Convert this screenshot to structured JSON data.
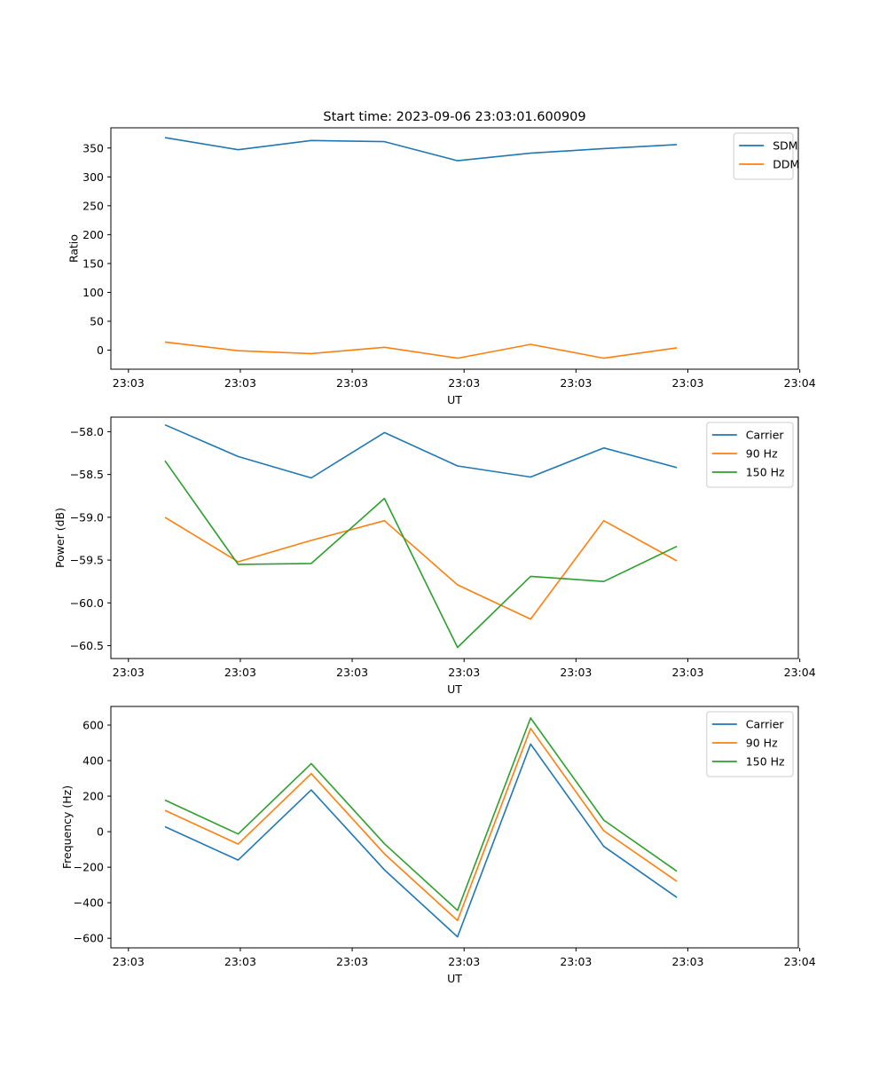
{
  "chart_data": [
    {
      "type": "line",
      "title": "Start time: 2023-09-06 23:03:01.600909",
      "xlabel": "UT",
      "ylabel": "Ratio",
      "x": [
        1,
        2,
        3,
        4,
        5,
        6,
        7,
        8
      ],
      "xlim": [
        0.26,
        9.66
      ],
      "x_ticks": [
        0.5,
        2.03,
        3.56,
        5.09,
        6.62,
        8.15,
        9.68
      ],
      "x_tick_labels": [
        "23:03",
        "23:03",
        "23:03",
        "23:03",
        "23:03",
        "23:03",
        "23:04"
      ],
      "ylim": [
        -33,
        385
      ],
      "y_ticks": [
        0,
        50,
        100,
        150,
        200,
        250,
        300,
        350
      ],
      "y_tick_labels": [
        "0",
        "50",
        "100",
        "150",
        "200",
        "250",
        "300",
        "350"
      ],
      "legend": "top-right",
      "grid": false,
      "series": [
        {
          "name": "SDM",
          "color": "#1f77b4",
          "values": [
            368,
            347,
            363,
            361,
            328,
            341,
            349,
            356
          ]
        },
        {
          "name": "DDM",
          "color": "#ff7f0e",
          "values": [
            14,
            -1,
            -6,
            5,
            -14,
            10,
            -14,
            4
          ]
        }
      ]
    },
    {
      "type": "line",
      "title": "",
      "xlabel": "UT",
      "ylabel": "Power (dB)",
      "x": [
        1,
        2,
        3,
        4,
        5,
        6,
        7,
        8
      ],
      "xlim": [
        0.26,
        9.66
      ],
      "x_ticks": [
        0.5,
        2.03,
        3.56,
        5.09,
        6.62,
        8.15,
        9.68
      ],
      "x_tick_labels": [
        "23:03",
        "23:03",
        "23:03",
        "23:03",
        "23:03",
        "23:03",
        "23:04"
      ],
      "ylim": [
        -60.65,
        -57.83
      ],
      "y_ticks": [
        -60.5,
        -60.0,
        -59.5,
        -59.0,
        -58.5,
        -58.0
      ],
      "y_tick_labels": [
        "−60.5",
        "−60.0",
        "−59.5",
        "−59.0",
        "−58.5",
        "−58.0"
      ],
      "legend": "top-right",
      "grid": false,
      "series": [
        {
          "name": "Carrier",
          "color": "#1f77b4",
          "values": [
            -57.92,
            -58.29,
            -58.54,
            -58.01,
            -58.4,
            -58.53,
            -58.19,
            -58.42
          ]
        },
        {
          "name": "90 Hz",
          "color": "#ff7f0e",
          "values": [
            -59.0,
            -59.52,
            -59.27,
            -59.04,
            -59.79,
            -60.19,
            -59.04,
            -59.51
          ]
        },
        {
          "name": "150 Hz",
          "color": "#2ca02c",
          "values": [
            -58.34,
            -59.55,
            -59.54,
            -58.78,
            -60.52,
            -59.69,
            -59.75,
            -59.34
          ]
        }
      ]
    },
    {
      "type": "line",
      "title": "",
      "xlabel": "UT",
      "ylabel": "Frequency (Hz)",
      "x": [
        1,
        2,
        3,
        4,
        5,
        6,
        7,
        8
      ],
      "xlim": [
        0.26,
        9.66
      ],
      "x_ticks": [
        0.5,
        2.03,
        3.56,
        5.09,
        6.62,
        8.15,
        9.68
      ],
      "x_tick_labels": [
        "23:03",
        "23:03",
        "23:03",
        "23:03",
        "23:03",
        "23:03",
        "23:04"
      ],
      "ylim": [
        -654,
        705
      ],
      "y_ticks": [
        -600,
        -400,
        -200,
        0,
        200,
        400,
        600
      ],
      "y_tick_labels": [
        "−600",
        "−400",
        "−200",
        "0",
        "200",
        "400",
        "600"
      ],
      "legend": "top-right",
      "grid": false,
      "series": [
        {
          "name": "Carrier",
          "color": "#1f77b4",
          "values": [
            28,
            -160,
            235,
            -215,
            -592,
            493,
            -83,
            -370
          ]
        },
        {
          "name": "90 Hz",
          "color": "#ff7f0e",
          "values": [
            120,
            -70,
            327,
            -125,
            -500,
            581,
            5,
            -280
          ]
        },
        {
          "name": "150 Hz",
          "color": "#2ca02c",
          "values": [
            178,
            -13,
            383,
            -68,
            -443,
            640,
            65,
            -223
          ]
        }
      ]
    }
  ]
}
